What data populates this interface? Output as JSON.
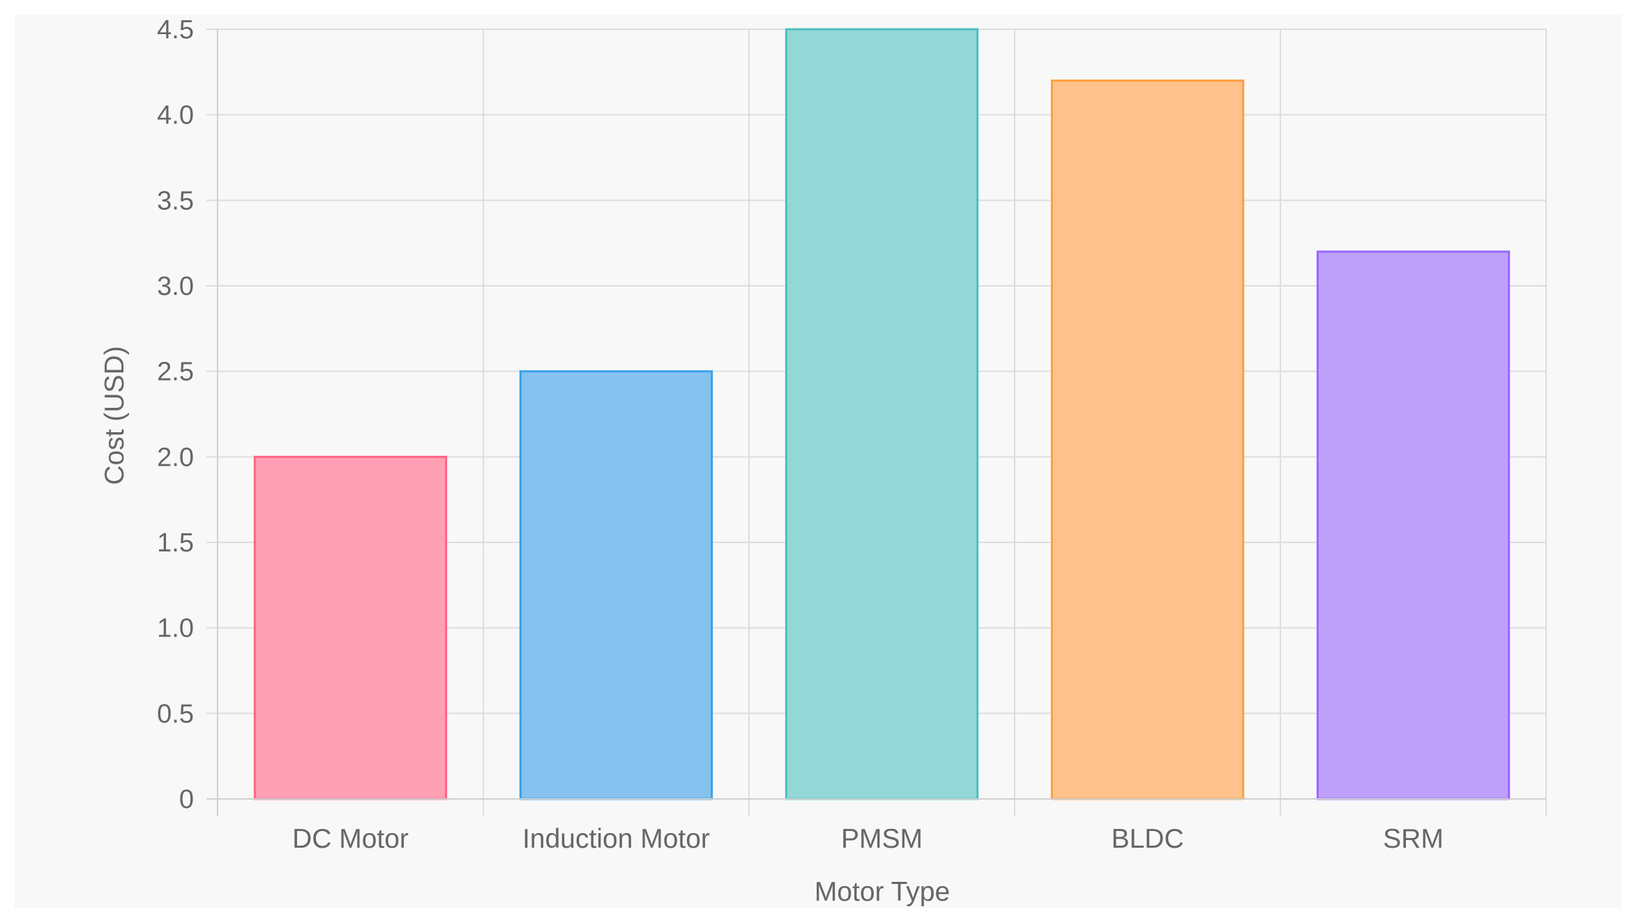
{
  "chart_data": {
    "type": "bar",
    "categories": [
      "DC Motor",
      "Induction Motor",
      "PMSM",
      "BLDC",
      "SRM"
    ],
    "values": [
      2.0,
      2.5,
      4.5,
      4.2,
      3.2
    ],
    "title": "",
    "xlabel": "Motor Type",
    "ylabel": "Cost (USD)",
    "ylim": [
      0,
      4.5
    ],
    "yticks": [
      "0",
      "0.5",
      "1.0",
      "1.5",
      "2.0",
      "2.5",
      "3.0",
      "3.5",
      "4.0",
      "4.5"
    ],
    "grid": true,
    "legend": "none",
    "colors": [
      {
        "fill": "#ff9fb4",
        "stroke": "#ff6384"
      },
      {
        "fill": "#86c2ef",
        "stroke": "#36a2eb"
      },
      {
        "fill": "#93d7d7",
        "stroke": "#4bc0c0"
      },
      {
        "fill": "#ffc28c",
        "stroke": "#ff9f40"
      },
      {
        "fill": "#bea0fb",
        "stroke": "#9966ff"
      }
    ]
  }
}
